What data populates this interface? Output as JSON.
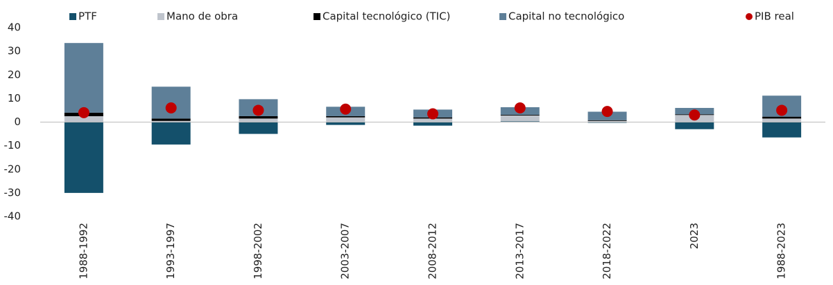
{
  "chart_data": {
    "type": "bar",
    "stacked": true,
    "categories": [
      "1988-1992",
      "1993-1997",
      "1998-2002",
      "2003-2007",
      "2008-2012",
      "2013-2017",
      "2018-2022",
      "2023",
      "1988-2023"
    ],
    "series": [
      {
        "name": "PTF",
        "color": "#14506b",
        "values": [
          -30,
          -9.5,
          -5,
          -1.2,
          -1.5,
          0.3,
          -0.3,
          -3,
          -6.5
        ]
      },
      {
        "name": "Mano de obra",
        "color": "#bfc4cc",
        "values": [
          2.5,
          0.5,
          1.5,
          2,
          1.5,
          2.5,
          0.5,
          3,
          1.5
        ]
      },
      {
        "name": "Capital tecnológico (TIC)",
        "color": "#000000",
        "values": [
          1.5,
          1,
          1,
          0.5,
          0.5,
          0.3,
          0.3,
          0.3,
          0.8
        ]
      },
      {
        "name": "Capital no tecnológico",
        "color": "#5e7f98",
        "values": [
          29.5,
          13.5,
          7.2,
          4,
          3.3,
          3.2,
          3.6,
          2.7,
          8.9
        ]
      },
      {
        "name": "PIB real",
        "color": "#c00000",
        "type": "scatter",
        "values": [
          4,
          6,
          5,
          5.5,
          3.5,
          6,
          4.5,
          3,
          5
        ]
      }
    ],
    "ylim": [
      -40,
      40
    ],
    "yticks": [
      -40,
      -30,
      -20,
      -10,
      0,
      10,
      20,
      30,
      40
    ]
  }
}
